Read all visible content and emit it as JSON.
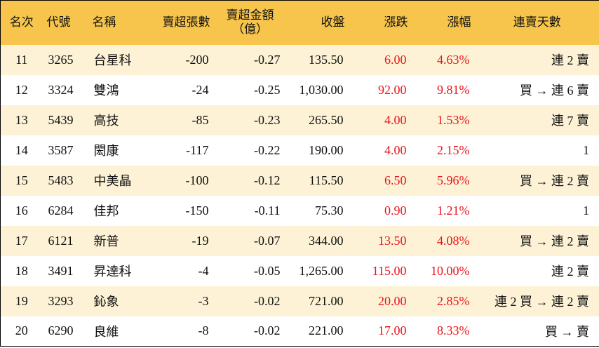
{
  "table": {
    "headers": [
      "名次",
      "代號",
      "名稱",
      "賣超張數",
      [
        "賣超金額",
        "（億）"
      ],
      "收盤",
      "漲跌",
      "漲幅",
      "連賣天數"
    ],
    "rows": [
      [
        "11",
        "3265",
        "台星科",
        "-200",
        "-0.27",
        "135.50",
        "6.00",
        "4.63%",
        "連 2 賣"
      ],
      [
        "12",
        "3324",
        "雙鴻",
        "-24",
        "-0.25",
        "1,030.00",
        "92.00",
        "9.81%",
        "買 → 連 6 賣"
      ],
      [
        "13",
        "5439",
        "高技",
        "-85",
        "-0.23",
        "265.50",
        "4.00",
        "1.53%",
        "連 7 賣"
      ],
      [
        "14",
        "3587",
        "閎康",
        "-117",
        "-0.22",
        "190.00",
        "4.00",
        "2.15%",
        "1"
      ],
      [
        "15",
        "5483",
        "中美晶",
        "-100",
        "-0.12",
        "115.50",
        "6.50",
        "5.96%",
        "買 → 連 2 賣"
      ],
      [
        "16",
        "6284",
        "佳邦",
        "-150",
        "-0.11",
        "75.30",
        "0.90",
        "1.21%",
        "1"
      ],
      [
        "17",
        "6121",
        "新普",
        "-19",
        "-0.07",
        "344.00",
        "13.50",
        "4.08%",
        "買 → 連 2 賣"
      ],
      [
        "18",
        "3491",
        "昇達科",
        "-4",
        "-0.05",
        "1,265.00",
        "115.00",
        "10.00%",
        "連 2 賣"
      ],
      [
        "19",
        "3293",
        "鈊象",
        "-3",
        "-0.02",
        "721.00",
        "20.00",
        "2.85%",
        "連 2 買 → 連 2 賣"
      ],
      [
        "20",
        "6290",
        "良維",
        "-8",
        "-0.02",
        "221.00",
        "17.00",
        "8.33%",
        "買 → 賣"
      ]
    ]
  }
}
